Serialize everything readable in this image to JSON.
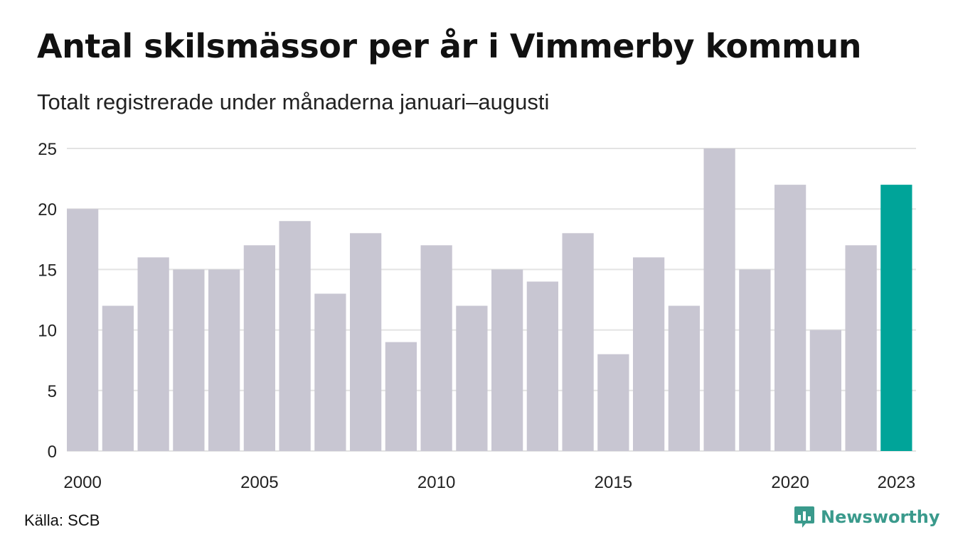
{
  "header": {
    "title": "Antal skilsmässor per år i Vimmerby kommun",
    "subtitle": "Totalt registrerade under månaderna januari–augusti"
  },
  "footer": {
    "source": "Källa: SCB",
    "brand": "Newsworthy",
    "brand_icon": "bar-chart-speech-bubble-icon"
  },
  "colors": {
    "bar_default": "#c8c6d2",
    "bar_highlight": "#00a499",
    "brand": "#3a9a8c",
    "grid": "#e3e3e3"
  },
  "chart_data": {
    "type": "bar",
    "categories": [
      "2000",
      "2001",
      "2002",
      "2003",
      "2004",
      "2005",
      "2006",
      "2007",
      "2008",
      "2009",
      "2010",
      "2011",
      "2012",
      "2013",
      "2014",
      "2015",
      "2016",
      "2017",
      "2018",
      "2019",
      "2020",
      "2021",
      "2022",
      "2023"
    ],
    "values": [
      20,
      12,
      16,
      15,
      15,
      17,
      19,
      13,
      18,
      9,
      17,
      12,
      15,
      14,
      18,
      8,
      16,
      12,
      25,
      15,
      22,
      10,
      17,
      22
    ],
    "highlight": "2023",
    "x_tick_labels": [
      "2000",
      "2005",
      "2010",
      "2015",
      "2020",
      "2023"
    ],
    "y_ticks": [
      0,
      5,
      10,
      15,
      20,
      25
    ],
    "ylim": [
      0,
      25
    ],
    "grid": true,
    "legend": "none"
  }
}
